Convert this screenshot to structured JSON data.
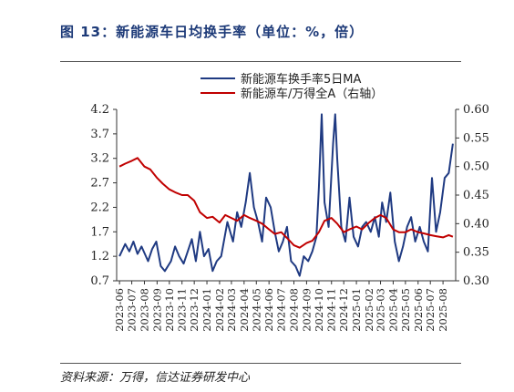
{
  "header": {
    "title": "图 13：新能源车日均换手率（单位：%，倍）"
  },
  "footer": {
    "source": "资料来源：万得，信达证券研发中心"
  },
  "colors": {
    "turnover": "#1f3a82",
    "ratio": "#c00000",
    "title": "#1d3a78"
  },
  "chart_data": {
    "type": "line",
    "title": "",
    "legend_position": "top-center",
    "grid": false,
    "x_ticks": [
      "2023-06",
      "2023-07",
      "2023-08",
      "2023-09",
      "2023-10",
      "2023-11",
      "2023-12",
      "2024-01",
      "2024-02",
      "2024-03",
      "2024-04",
      "2024-05",
      "2024-06",
      "2024-07",
      "2024-08",
      "2024-09",
      "2024-10",
      "2024-11",
      "2024-12",
      "2025-01",
      "2025-02",
      "2025-03",
      "2025-04",
      "2025-05",
      "2025-06",
      "2025-07",
      "2025-08"
    ],
    "y_left": {
      "min": 0.7,
      "max": 4.2,
      "ticks": [
        "0.7",
        "1.2",
        "1.7",
        "2.2",
        "2.7",
        "3.2",
        "3.7",
        "4.2"
      ]
    },
    "y_right": {
      "min": 0.3,
      "max": 0.6,
      "ticks": [
        "0.30",
        "0.35",
        "0.40",
        "0.45",
        "0.50",
        "0.55",
        "0.60"
      ]
    },
    "series": [
      {
        "name": "新能源车换手率5日MA",
        "axis": "left",
        "x": [
          "2023-06-01",
          "2023-06-15",
          "2023-06-25",
          "2023-07-05",
          "2023-07-15",
          "2023-07-25",
          "2023-08-10",
          "2023-08-20",
          "2023-08-30",
          "2023-09-10",
          "2023-09-20",
          "2023-10-05",
          "2023-10-15",
          "2023-10-25",
          "2023-11-05",
          "2023-11-15",
          "2023-11-25",
          "2023-12-05",
          "2023-12-15",
          "2023-12-25",
          "2024-01-05",
          "2024-01-15",
          "2024-01-25",
          "2024-02-05",
          "2024-02-20",
          "2024-03-05",
          "2024-03-15",
          "2024-03-25",
          "2024-04-05",
          "2024-04-15",
          "2024-04-25",
          "2024-05-05",
          "2024-05-15",
          "2024-05-25",
          "2024-06-05",
          "2024-06-15",
          "2024-06-25",
          "2024-07-05",
          "2024-07-15",
          "2024-07-25",
          "2024-08-05",
          "2024-08-15",
          "2024-08-25",
          "2024-09-05",
          "2024-09-15",
          "2024-09-25",
          "2024-10-01",
          "2024-10-08",
          "2024-10-15",
          "2024-10-25",
          "2024-11-05",
          "2024-11-10",
          "2024-11-15",
          "2024-11-25",
          "2024-12-05",
          "2024-12-15",
          "2024-12-25",
          "2025-01-05",
          "2025-01-15",
          "2025-01-25",
          "2025-02-05",
          "2025-02-15",
          "2025-02-25",
          "2025-03-05",
          "2025-03-15",
          "2025-03-25",
          "2025-04-05",
          "2025-04-15",
          "2025-04-25",
          "2025-05-05",
          "2025-05-15",
          "2025-05-25",
          "2025-06-05",
          "2025-06-15",
          "2025-06-25",
          "2025-07-05",
          "2025-07-15",
          "2025-07-25",
          "2025-08-05",
          "2025-08-15",
          "2025-08-25"
        ],
        "y": [
          1.2,
          1.45,
          1.3,
          1.5,
          1.25,
          1.4,
          1.1,
          1.35,
          1.5,
          1.0,
          0.9,
          1.1,
          1.4,
          1.2,
          1.05,
          1.3,
          1.55,
          1.1,
          1.7,
          1.2,
          1.35,
          0.9,
          1.1,
          1.2,
          1.9,
          1.5,
          2.1,
          1.8,
          2.3,
          2.9,
          2.2,
          1.9,
          1.5,
          2.4,
          2.2,
          1.7,
          1.3,
          1.5,
          1.8,
          1.1,
          1.0,
          0.8,
          1.2,
          1.1,
          1.3,
          1.6,
          2.6,
          4.1,
          2.3,
          1.8,
          3.5,
          4.1,
          3.2,
          1.8,
          1.5,
          2.4,
          1.6,
          1.4,
          1.8,
          1.9,
          1.7,
          2.0,
          1.6,
          2.3,
          1.9,
          2.5,
          1.5,
          1.1,
          1.4,
          1.8,
          2.0,
          1.5,
          1.8,
          1.5,
          1.3,
          2.8,
          1.7,
          2.1,
          2.8,
          2.9,
          3.5
        ]
      },
      {
        "name": "新能源车/万得全A（右轴）",
        "axis": "right",
        "x": [
          "2023-06-01",
          "2023-06-15",
          "2023-07-01",
          "2023-07-15",
          "2023-08-01",
          "2023-08-15",
          "2023-09-01",
          "2023-09-15",
          "2023-10-01",
          "2023-10-15",
          "2023-11-01",
          "2023-11-15",
          "2023-12-01",
          "2023-12-15",
          "2024-01-01",
          "2024-01-15",
          "2024-02-01",
          "2024-02-15",
          "2024-03-01",
          "2024-03-15",
          "2024-04-01",
          "2024-04-15",
          "2024-05-01",
          "2024-05-15",
          "2024-06-01",
          "2024-06-15",
          "2024-07-01",
          "2024-07-15",
          "2024-08-01",
          "2024-08-15",
          "2024-09-01",
          "2024-09-15",
          "2024-10-01",
          "2024-10-15",
          "2024-11-01",
          "2024-11-15",
          "2024-12-01",
          "2024-12-15",
          "2025-01-01",
          "2025-01-15",
          "2025-02-01",
          "2025-02-15",
          "2025-03-01",
          "2025-03-15",
          "2025-04-01",
          "2025-04-15",
          "2025-05-01",
          "2025-05-15",
          "2025-06-01",
          "2025-06-15",
          "2025-07-01",
          "2025-07-15",
          "2025-08-01",
          "2025-08-15",
          "2025-08-25"
        ],
        "y": [
          0.5,
          0.505,
          0.51,
          0.515,
          0.5,
          0.495,
          0.48,
          0.47,
          0.46,
          0.455,
          0.45,
          0.45,
          0.44,
          0.42,
          0.41,
          0.412,
          0.402,
          0.415,
          0.41,
          0.405,
          0.415,
          0.41,
          0.405,
          0.4,
          0.39,
          0.382,
          0.385,
          0.375,
          0.362,
          0.358,
          0.366,
          0.37,
          0.385,
          0.405,
          0.41,
          0.4,
          0.385,
          0.39,
          0.395,
          0.39,
          0.402,
          0.41,
          0.415,
          0.41,
          0.39,
          0.385,
          0.385,
          0.39,
          0.385,
          0.383,
          0.38,
          0.378,
          0.376,
          0.38,
          0.377
        ]
      }
    ]
  }
}
